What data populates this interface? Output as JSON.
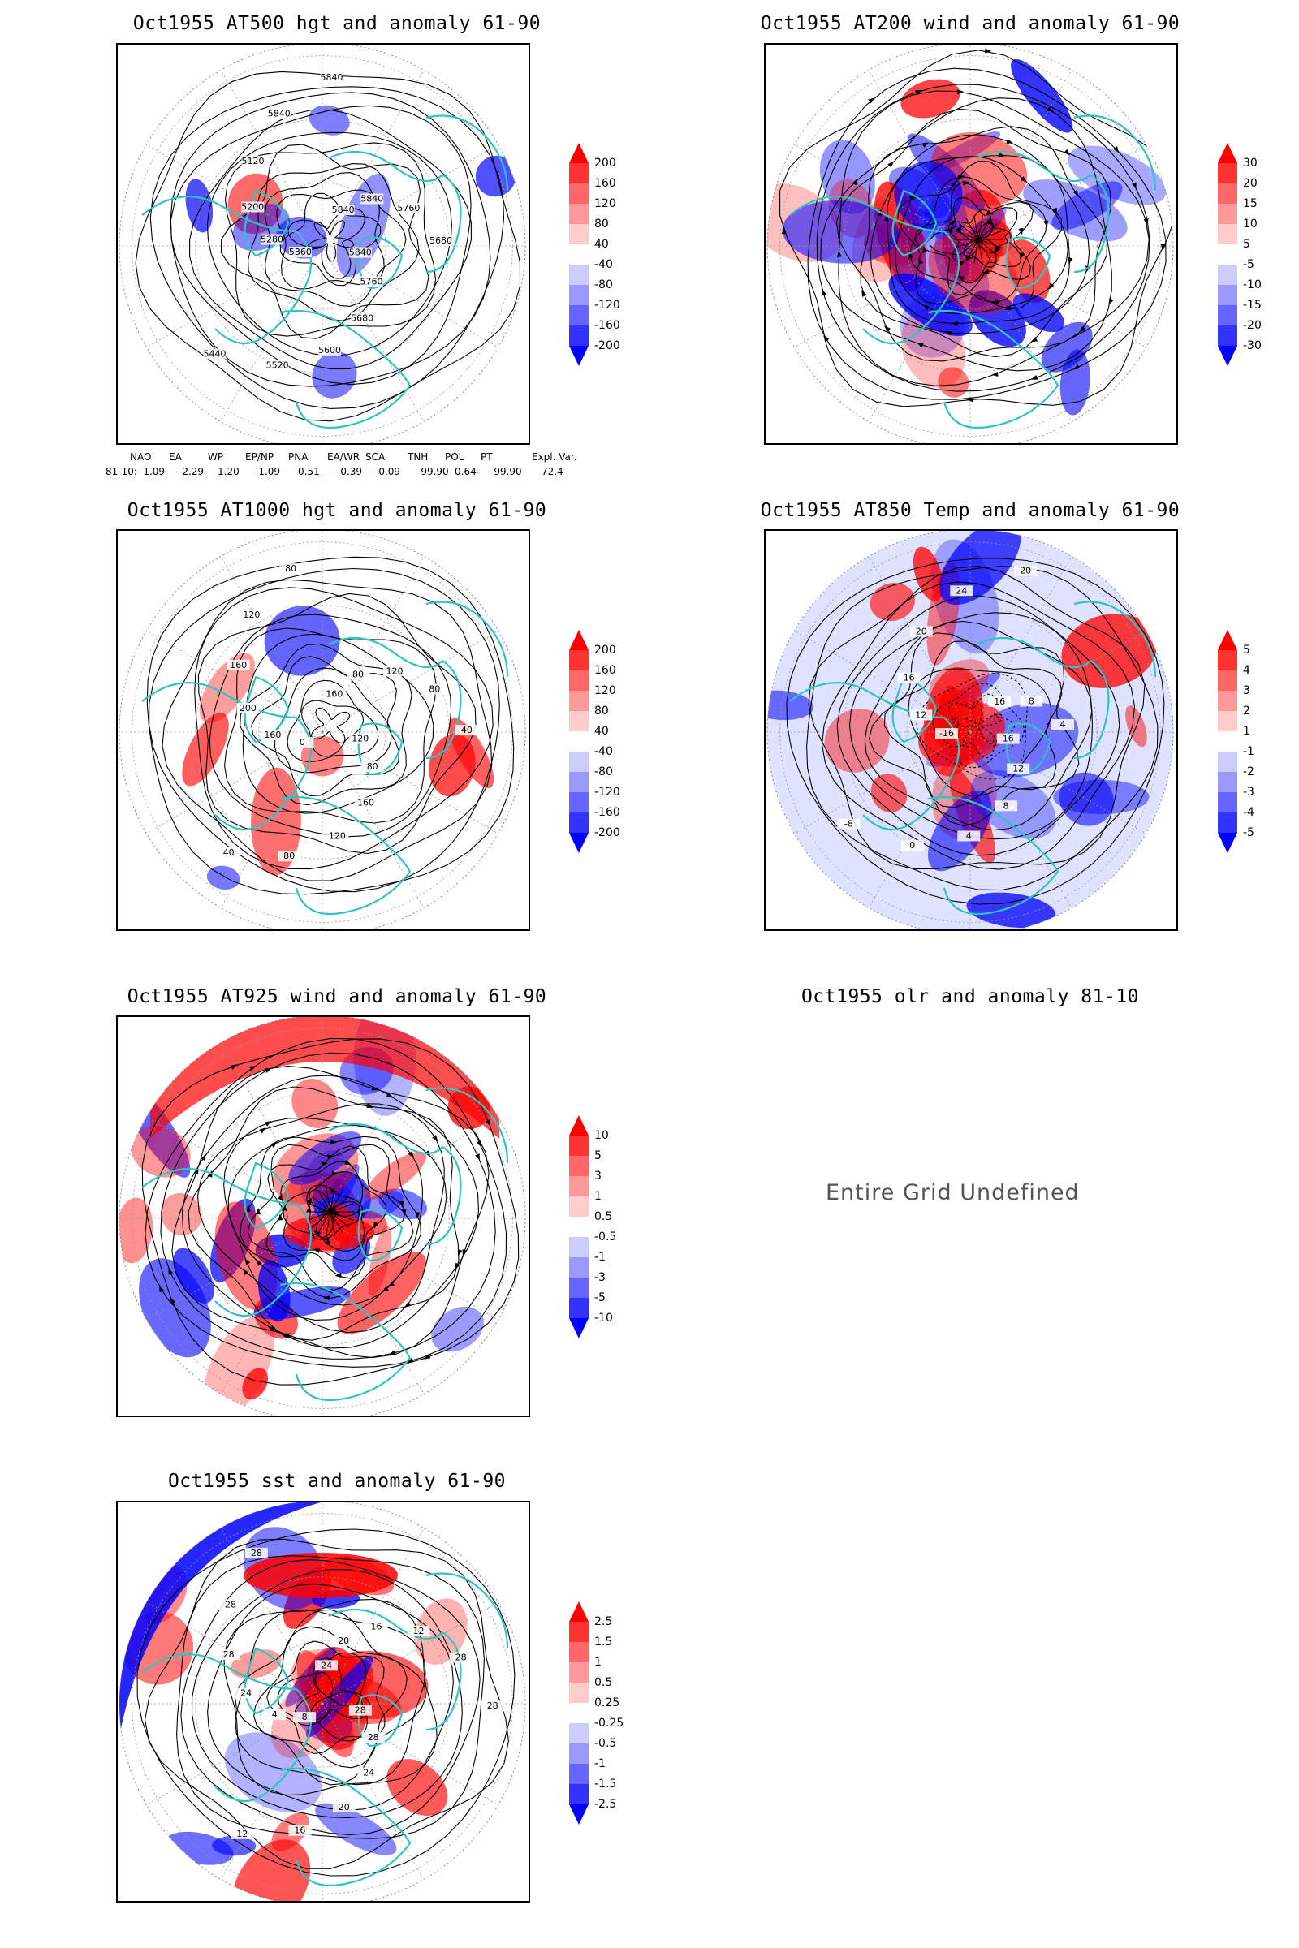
{
  "panels": [
    {
      "id": "p1",
      "title": "Oct1955 AT500 hgt and anomaly 61-90",
      "style": "height",
      "contour_labels": [
        "5840",
        "5760",
        "5680",
        "5600",
        "5520",
        "5440",
        "5360",
        "5280",
        "5200",
        "5120",
        "5840",
        "5840",
        "5840",
        "5840",
        "5760",
        "5680"
      ],
      "colorbar": [
        "200",
        "160",
        "120",
        "80",
        "40",
        "-40",
        "-80",
        "-120",
        "-160",
        "-200"
      ]
    },
    {
      "id": "p2",
      "title": "Oct1955 AT200 wind and anomaly 61-90",
      "style": "wind",
      "contour_labels": [],
      "colorbar": [
        "30",
        "20",
        "15",
        "10",
        "5",
        "-5",
        "-10",
        "-15",
        "-20",
        "-30"
      ]
    },
    {
      "id": "p3",
      "title": "Oct1955 AT1000 hgt and anomaly 61-90",
      "style": "height",
      "contour_labels": [
        "120",
        "80",
        "160",
        "120",
        "80",
        "40",
        "0",
        "160",
        "200",
        "160",
        "120",
        "80",
        "160",
        "80",
        "120",
        "80",
        "40"
      ],
      "colorbar": [
        "200",
        "160",
        "120",
        "80",
        "40",
        "-40",
        "-80",
        "-120",
        "-160",
        "-200"
      ]
    },
    {
      "id": "p4",
      "title": "Oct1955 AT850 Temp and anomaly 61-90",
      "style": "temp",
      "contour_labels": [
        "16",
        "12",
        "8",
        "4",
        "0",
        "-8",
        "-16",
        "12",
        "16",
        "20",
        "24",
        "20",
        "16",
        "8",
        "4"
      ],
      "colorbar": [
        "5",
        "4",
        "3",
        "2",
        "1",
        "-1",
        "-2",
        "-3",
        "-4",
        "-5"
      ]
    },
    {
      "id": "p5",
      "title": "Oct1955 AT925 wind and anomaly 61-90",
      "style": "wind",
      "contour_labels": [],
      "colorbar": [
        "10",
        "5",
        "3",
        "1",
        "0.5",
        "-0.5",
        "-1",
        "-3",
        "-5",
        "-10"
      ]
    },
    {
      "id": "p6",
      "title": "Oct1955 olr and anomaly 81-10",
      "style": "undefined",
      "message": "Entire Grid Undefined"
    },
    {
      "id": "p7",
      "title": "Oct1955 sst and anomaly 61-90",
      "style": "sst",
      "contour_labels": [
        "28",
        "28",
        "24",
        "20",
        "16",
        "12",
        "8",
        "4",
        "24",
        "28",
        "28",
        "28",
        "24",
        "20",
        "16",
        "12",
        "28",
        "28"
      ],
      "colorbar": [
        "2.5",
        "1.5",
        "1",
        "0.5",
        "0.25",
        "-0.25",
        "-0.5",
        "-1",
        "-1.5",
        "-2.5"
      ]
    }
  ],
  "teleconnection": {
    "headers": [
      "NAO",
      "EA",
      "WP",
      "EP/NP",
      "PNA",
      "EA/WR",
      "SCA",
      "TNH",
      "POL",
      "PT",
      "Expl. Var."
    ],
    "row_label": "81-10:",
    "values": [
      "-1.09",
      "-2.29",
      "1.20",
      "-1.09",
      "0.51",
      "-0.39",
      "-0.09",
      "-99.90",
      "0.64",
      "-99.90",
      "72.4"
    ]
  },
  "colors": {
    "positive": "#ff0000",
    "negative": "#0000ff",
    "coastline": "#2ec4c4",
    "contour": "#000000"
  }
}
